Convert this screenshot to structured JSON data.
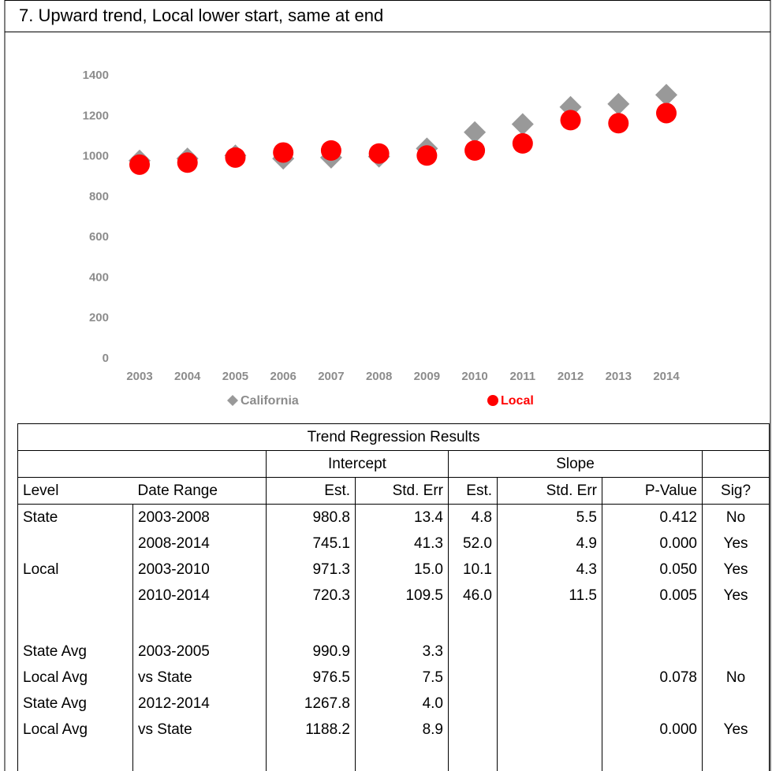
{
  "chart_data": {
    "type": "scatter",
    "title": "7. Upward trend, Local lower start, same at end",
    "categories": [
      "2003",
      "2004",
      "2005",
      "2006",
      "2007",
      "2008",
      "2009",
      "2010",
      "2011",
      "2012",
      "2013",
      "2014"
    ],
    "series": [
      {
        "name": "California",
        "color": "#999999",
        "marker": "diamond",
        "values": [
          980,
          990,
          1005,
          990,
          995,
          1000,
          1040,
          1120,
          1160,
          1245,
          1260,
          1305
        ]
      },
      {
        "name": "Local",
        "color": "#ff0000",
        "marker": "circle",
        "values": [
          960,
          970,
          995,
          1020,
          1030,
          1015,
          1005,
          1030,
          1065,
          1180,
          1165,
          1215
        ]
      }
    ],
    "ylim": [
      0,
      1400
    ],
    "yticks": [
      0,
      200,
      400,
      600,
      800,
      1000,
      1200,
      1400
    ],
    "grid": false,
    "legend": "bottom"
  },
  "table": {
    "title": "Trend Regression Results",
    "groups": [
      "Intercept",
      "Slope"
    ],
    "columns": [
      "Level",
      "Date Range",
      "Est.",
      "Std. Err",
      "Est.",
      "Std. Err",
      "P-Value",
      "Sig?"
    ],
    "rows": [
      [
        "State",
        "2003-2008",
        "980.8",
        "13.4",
        "4.8",
        "5.5",
        "0.412",
        "No"
      ],
      [
        null,
        "2008-2014",
        "745.1",
        "41.3",
        "52.0",
        "4.9",
        "0.000",
        "Yes"
      ],
      [
        "Local",
        "2003-2010",
        "971.3",
        "15.0",
        "10.1",
        "4.3",
        "0.050",
        "Yes"
      ],
      [
        null,
        "2010-2014",
        "720.3",
        "109.5",
        "46.0",
        "11.5",
        "0.005",
        "Yes"
      ],
      [
        "State Avg",
        "2003-2005",
        "990.9",
        "3.3",
        null,
        null,
        null,
        null
      ],
      [
        "Local Avg",
        "vs State",
        "976.5",
        "7.5",
        null,
        null,
        "0.078",
        "No"
      ],
      [
        "State Avg",
        "2012-2014",
        "1267.8",
        "4.0",
        null,
        null,
        null,
        null
      ],
      [
        "Local Avg",
        "vs State",
        "1188.2",
        "8.9",
        null,
        null,
        "0.000",
        "Yes"
      ]
    ]
  }
}
